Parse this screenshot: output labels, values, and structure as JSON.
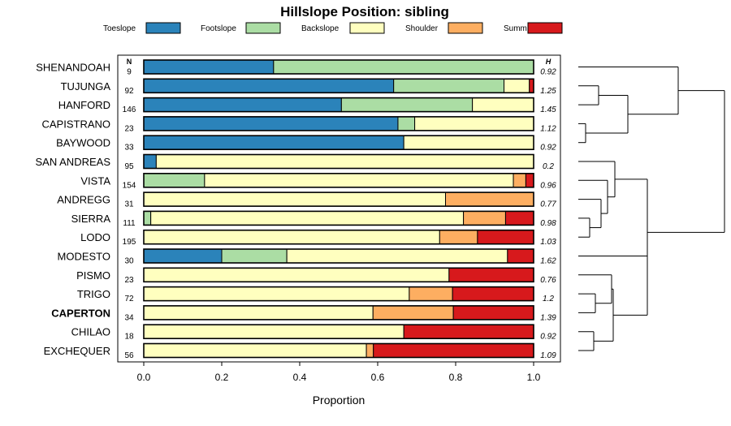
{
  "chart_data": {
    "type": "bar",
    "orientation": "horizontal",
    "stacked": true,
    "title": "Hillslope Position: sibling",
    "xlabel": "Proportion",
    "xlim": [
      0,
      1
    ],
    "xticks": [
      "0.0",
      "0.2",
      "0.4",
      "0.6",
      "0.8",
      "1.0"
    ],
    "n_header": "N",
    "h_header": "H",
    "legend_position": "top",
    "series": [
      {
        "name": "Toeslope",
        "color": "#2b83ba"
      },
      {
        "name": "Footslope",
        "color": "#abdda4"
      },
      {
        "name": "Backslope",
        "color": "#ffffbf"
      },
      {
        "name": "Shoulder",
        "color": "#fdae61"
      },
      {
        "name": "Summit",
        "color": "#d7191c"
      }
    ],
    "rows": [
      {
        "label": "SHENANDOAH",
        "n": "9",
        "h": "0.92",
        "bold": false,
        "values": [
          0.333,
          0.667,
          0,
          0,
          0
        ]
      },
      {
        "label": "TUJUNGA",
        "n": "92",
        "h": "1.25",
        "bold": false,
        "values": [
          0.641,
          0.283,
          0.065,
          0,
          0.011
        ]
      },
      {
        "label": "HANFORD",
        "n": "146",
        "h": "1.45",
        "bold": false,
        "values": [
          0.507,
          0.336,
          0.157,
          0,
          0
        ]
      },
      {
        "label": "CAPISTRANO",
        "n": "23",
        "h": "1.12",
        "bold": false,
        "values": [
          0.652,
          0.043,
          0.305,
          0,
          0
        ]
      },
      {
        "label": "BAYWOOD",
        "n": "33",
        "h": "0.92",
        "bold": false,
        "values": [
          0.667,
          0,
          0.333,
          0,
          0
        ]
      },
      {
        "label": "SAN ANDREAS",
        "n": "95",
        "h": "0.2",
        "bold": false,
        "values": [
          0.032,
          0,
          0.968,
          0,
          0
        ]
      },
      {
        "label": "VISTA",
        "n": "154",
        "h": "0.96",
        "bold": false,
        "values": [
          0,
          0.156,
          0.792,
          0.032,
          0.02
        ]
      },
      {
        "label": "ANDREGG",
        "n": "31",
        "h": "0.77",
        "bold": false,
        "values": [
          0,
          0,
          0.774,
          0.226,
          0
        ]
      },
      {
        "label": "SIERRA",
        "n": "111",
        "h": "0.98",
        "bold": false,
        "values": [
          0,
          0.018,
          0.802,
          0.108,
          0.072
        ]
      },
      {
        "label": "LODO",
        "n": "195",
        "h": "1.03",
        "bold": false,
        "values": [
          0,
          0,
          0.759,
          0.097,
          0.144
        ]
      },
      {
        "label": "MODESTO",
        "n": "30",
        "h": "1.62",
        "bold": false,
        "values": [
          0.2,
          0.167,
          0.566,
          0,
          0.067
        ]
      },
      {
        "label": "PISMO",
        "n": "23",
        "h": "0.76",
        "bold": false,
        "values": [
          0,
          0,
          0.783,
          0,
          0.217
        ]
      },
      {
        "label": "TRIGO",
        "n": "72",
        "h": "1.2",
        "bold": false,
        "values": [
          0,
          0,
          0.681,
          0.111,
          0.208
        ]
      },
      {
        "label": "CAPERTON",
        "n": "34",
        "h": "1.39",
        "bold": true,
        "values": [
          0,
          0,
          0.588,
          0.206,
          0.206
        ]
      },
      {
        "label": "CHILAO",
        "n": "18",
        "h": "0.92",
        "bold": false,
        "values": [
          0,
          0,
          0.667,
          0,
          0.333
        ]
      },
      {
        "label": "EXCHEQUER",
        "n": "56",
        "h": "1.09",
        "bold": false,
        "values": [
          0,
          0,
          0.571,
          0.018,
          0.411
        ]
      }
    ]
  }
}
